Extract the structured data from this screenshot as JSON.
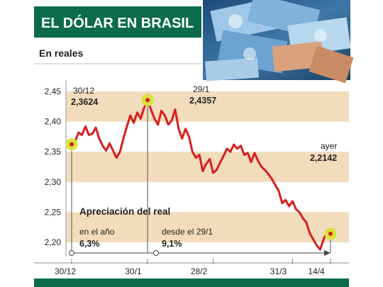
{
  "header": {
    "title": "EL DÓLAR EN BRASIL",
    "subtitle": "En reales",
    "accent_color": "#0c6b4a"
  },
  "chart_data": {
    "type": "line",
    "title": "EL DÓLAR EN BRASIL",
    "ylabel": "En reales",
    "xlabel": "",
    "ylim": [
      2.18,
      2.47
    ],
    "yticks": [
      2.45,
      2.4,
      2.35,
      2.3,
      2.25,
      2.2
    ],
    "ytick_labels": [
      "2,45",
      "2,40",
      "2,35",
      "2,30",
      "2,25",
      "2,20"
    ],
    "xticks": [
      0,
      22,
      41,
      64,
      75
    ],
    "xtick_labels": [
      "30/12",
      "30/1",
      "28/2",
      "31/3",
      "14/4"
    ],
    "grid": "horizontal bands",
    "line_color": "#d81e1e",
    "series": [
      {
        "x": [
          0,
          1,
          2,
          3,
          4,
          5,
          6,
          7,
          8,
          9,
          10,
          11,
          12,
          13,
          14,
          15,
          16,
          17,
          18,
          19,
          20,
          21,
          22,
          23,
          24,
          25,
          26,
          27,
          28,
          29,
          30,
          31,
          32,
          33,
          34,
          35,
          36,
          37,
          38,
          39,
          40,
          41,
          42,
          43,
          44,
          45,
          46,
          47,
          48,
          49,
          50,
          51,
          52,
          53,
          54,
          55,
          56,
          57,
          58,
          59,
          60,
          61,
          62,
          63,
          64,
          65,
          66,
          67,
          68,
          69,
          70,
          71,
          72,
          73,
          74,
          75
        ],
        "values": [
          2.362,
          2.367,
          2.382,
          2.378,
          2.392,
          2.378,
          2.38,
          2.39,
          2.372,
          2.36,
          2.352,
          2.364,
          2.352,
          2.34,
          2.35,
          2.372,
          2.392,
          2.41,
          2.398,
          2.415,
          2.405,
          2.423,
          2.435,
          2.42,
          2.405,
          2.395,
          2.418,
          2.41,
          2.395,
          2.402,
          2.42,
          2.388,
          2.372,
          2.388,
          2.375,
          2.35,
          2.34,
          2.345,
          2.318,
          2.33,
          2.338,
          2.315,
          2.32,
          2.332,
          2.343,
          2.355,
          2.35,
          2.362,
          2.355,
          2.36,
          2.345,
          2.348,
          2.333,
          2.348,
          2.335,
          2.325,
          2.32,
          2.313,
          2.305,
          2.295,
          2.285,
          2.265,
          2.27,
          2.26,
          2.268,
          2.255,
          2.25,
          2.24,
          2.233,
          2.215,
          2.205,
          2.195,
          2.188,
          2.205,
          2.218,
          2.214
        ]
      }
    ],
    "annotations": [
      {
        "date": "30/12",
        "value": "2,3624"
      },
      {
        "date": "29/1",
        "value": "2,4357"
      },
      {
        "date": "ayer",
        "value": "2,2142"
      }
    ],
    "highlight_points": [
      {
        "x": 0,
        "y": 2.3624
      },
      {
        "x": 22,
        "y": 2.4357
      },
      {
        "x": 75,
        "y": 2.2142
      }
    ],
    "apreciacion": {
      "title": "Apreciación del real",
      "periods": [
        {
          "label": "en el año",
          "value": "6,3%"
        },
        {
          "label": "desde el 29/1",
          "value": "9,1%"
        }
      ]
    }
  }
}
